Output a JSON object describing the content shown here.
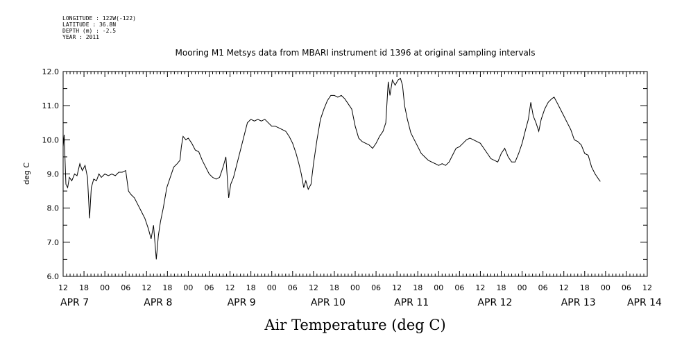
{
  "header": {
    "longitude": "LONGITUDE : 122W(-122)",
    "latitude": "LATITUDE : 36.8N",
    "depth": "DEPTH (m) : -2.5",
    "year": "YEAR : 2011"
  },
  "chart_data": {
    "type": "line",
    "title": "Mooring M1 Metsys data from MBARI instrument id 1396 at original sampling intervals",
    "xlabel": "Air Temperature (deg C)",
    "ylabel": "deg C",
    "ylim": [
      6.0,
      12.0
    ],
    "yticks": [
      "6.0",
      "7.0",
      "8.0",
      "9.0",
      "10.0",
      "11.0",
      "12.0"
    ],
    "xlim_hours": [
      0,
      168
    ],
    "xtick_labels": [
      "12",
      "18",
      "00",
      "06",
      "12",
      "18",
      "00",
      "06",
      "12",
      "18",
      "00",
      "06",
      "12",
      "18",
      "00",
      "06",
      "12",
      "18",
      "00",
      "06",
      "12",
      "18",
      "00",
      "06",
      "12",
      "18",
      "00",
      "06",
      "12"
    ],
    "date_labels": [
      {
        "label": "APR   7",
        "hour": 0
      },
      {
        "label": "APR   8",
        "hour": 24
      },
      {
        "label": "APR   9",
        "hour": 48
      },
      {
        "label": "APR 10",
        "hour": 72
      },
      {
        "label": "APR 11",
        "hour": 96
      },
      {
        "label": "APR 12",
        "hour": 120
      },
      {
        "label": "APR 13",
        "hour": 144
      },
      {
        "label": "APR 14",
        "hour": 163
      }
    ],
    "grid": false,
    "series": [
      {
        "values": [
          [
            0.0,
            9.8
          ],
          [
            0.3,
            10.15
          ],
          [
            0.8,
            8.7
          ],
          [
            1.3,
            8.6
          ],
          [
            1.8,
            8.9
          ],
          [
            2.5,
            8.8
          ],
          [
            3.3,
            9.0
          ],
          [
            4.0,
            8.95
          ],
          [
            4.8,
            9.3
          ],
          [
            5.5,
            9.1
          ],
          [
            6.3,
            9.25
          ],
          [
            7.0,
            8.9
          ],
          [
            7.6,
            7.7
          ],
          [
            8.1,
            8.6
          ],
          [
            8.8,
            8.85
          ],
          [
            9.6,
            8.8
          ],
          [
            10.3,
            9.0
          ],
          [
            11.0,
            8.9
          ],
          [
            12.0,
            9.0
          ],
          [
            13.0,
            8.95
          ],
          [
            14.0,
            9.0
          ],
          [
            15.0,
            8.95
          ],
          [
            16.0,
            9.05
          ],
          [
            17.0,
            9.05
          ],
          [
            18.0,
            9.1
          ],
          [
            18.8,
            8.5
          ],
          [
            19.5,
            8.4
          ],
          [
            20.5,
            8.3
          ],
          [
            21.5,
            8.1
          ],
          [
            22.5,
            7.9
          ],
          [
            23.5,
            7.7
          ],
          [
            24.5,
            7.4
          ],
          [
            25.3,
            7.1
          ],
          [
            26.0,
            7.5
          ],
          [
            26.8,
            6.5
          ],
          [
            27.4,
            7.2
          ],
          [
            28.0,
            7.6
          ],
          [
            28.8,
            8.0
          ],
          [
            29.8,
            8.6
          ],
          [
            30.8,
            8.9
          ],
          [
            31.8,
            9.2
          ],
          [
            32.8,
            9.3
          ],
          [
            33.6,
            9.4
          ],
          [
            34.0,
            9.8
          ],
          [
            34.5,
            10.1
          ],
          [
            35.3,
            10.0
          ],
          [
            36.0,
            10.05
          ],
          [
            37.0,
            9.9
          ],
          [
            38.0,
            9.7
          ],
          [
            39.0,
            9.65
          ],
          [
            40.0,
            9.4
          ],
          [
            41.0,
            9.2
          ],
          [
            42.0,
            9.0
          ],
          [
            43.0,
            8.9
          ],
          [
            44.0,
            8.85
          ],
          [
            45.0,
            8.9
          ],
          [
            46.0,
            9.2
          ],
          [
            46.8,
            9.5
          ],
          [
            47.6,
            8.3
          ],
          [
            48.2,
            8.7
          ],
          [
            49.0,
            8.9
          ],
          [
            50.0,
            9.3
          ],
          [
            51.0,
            9.7
          ],
          [
            52.0,
            10.1
          ],
          [
            53.0,
            10.5
          ],
          [
            54.0,
            10.6
          ],
          [
            55.0,
            10.55
          ],
          [
            56.0,
            10.6
          ],
          [
            57.0,
            10.55
          ],
          [
            58.0,
            10.6
          ],
          [
            59.0,
            10.5
          ],
          [
            60.0,
            10.4
          ],
          [
            61.0,
            10.4
          ],
          [
            62.0,
            10.35
          ],
          [
            63.0,
            10.3
          ],
          [
            64.0,
            10.25
          ],
          [
            65.0,
            10.1
          ],
          [
            66.0,
            9.9
          ],
          [
            67.0,
            9.6
          ],
          [
            67.8,
            9.3
          ],
          [
            68.5,
            9.0
          ],
          [
            69.2,
            8.6
          ],
          [
            69.8,
            8.8
          ],
          [
            70.5,
            8.55
          ],
          [
            71.3,
            8.7
          ],
          [
            72.0,
            9.3
          ],
          [
            73.0,
            10.0
          ],
          [
            74.0,
            10.6
          ],
          [
            75.0,
            10.9
          ],
          [
            76.0,
            11.15
          ],
          [
            77.0,
            11.3
          ],
          [
            78.0,
            11.3
          ],
          [
            79.0,
            11.25
          ],
          [
            80.0,
            11.3
          ],
          [
            81.0,
            11.2
          ],
          [
            82.0,
            11.05
          ],
          [
            83.0,
            10.9
          ],
          [
            84.0,
            10.4
          ],
          [
            85.0,
            10.05
          ],
          [
            86.0,
            9.95
          ],
          [
            87.0,
            9.9
          ],
          [
            88.0,
            9.85
          ],
          [
            89.0,
            9.75
          ],
          [
            90.0,
            9.9
          ],
          [
            91.0,
            10.1
          ],
          [
            92.0,
            10.25
          ],
          [
            92.8,
            10.5
          ],
          [
            93.5,
            11.7
          ],
          [
            94.0,
            11.3
          ],
          [
            94.7,
            11.75
          ],
          [
            95.5,
            11.6
          ],
          [
            96.3,
            11.75
          ],
          [
            97.0,
            11.8
          ],
          [
            97.6,
            11.6
          ],
          [
            98.2,
            11.0
          ],
          [
            99.0,
            10.6
          ],
          [
            100.0,
            10.2
          ],
          [
            101.0,
            10.0
          ],
          [
            102.0,
            9.8
          ],
          [
            103.0,
            9.6
          ],
          [
            104.0,
            9.5
          ],
          [
            105.0,
            9.4
          ],
          [
            106.0,
            9.35
          ],
          [
            107.0,
            9.3
          ],
          [
            108.0,
            9.25
          ],
          [
            109.0,
            9.3
          ],
          [
            110.0,
            9.25
          ],
          [
            111.0,
            9.35
          ],
          [
            112.0,
            9.55
          ],
          [
            113.0,
            9.75
          ],
          [
            114.0,
            9.8
          ],
          [
            115.0,
            9.9
          ],
          [
            116.0,
            10.0
          ],
          [
            117.0,
            10.05
          ],
          [
            118.0,
            10.0
          ],
          [
            119.0,
            9.95
          ],
          [
            120.0,
            9.9
          ],
          [
            121.0,
            9.75
          ],
          [
            122.0,
            9.6
          ],
          [
            123.0,
            9.45
          ],
          [
            124.0,
            9.4
          ],
          [
            125.0,
            9.35
          ],
          [
            126.0,
            9.6
          ],
          [
            127.0,
            9.75
          ],
          [
            128.0,
            9.5
          ],
          [
            129.0,
            9.35
          ],
          [
            130.0,
            9.35
          ],
          [
            131.0,
            9.6
          ],
          [
            132.0,
            9.9
          ],
          [
            133.0,
            10.3
          ],
          [
            133.8,
            10.6
          ],
          [
            134.5,
            11.1
          ],
          [
            135.2,
            10.7
          ],
          [
            136.0,
            10.5
          ],
          [
            136.8,
            10.25
          ],
          [
            137.5,
            10.6
          ],
          [
            138.5,
            10.9
          ],
          [
            139.5,
            11.1
          ],
          [
            140.5,
            11.2
          ],
          [
            141.2,
            11.25
          ],
          [
            142.0,
            11.1
          ],
          [
            143.0,
            10.9
          ],
          [
            144.0,
            10.7
          ],
          [
            145.0,
            10.5
          ],
          [
            146.0,
            10.3
          ],
          [
            147.0,
            10.0
          ],
          [
            148.0,
            9.95
          ],
          [
            149.0,
            9.85
          ],
          [
            150.0,
            9.6
          ],
          [
            151.0,
            9.55
          ],
          [
            152.0,
            9.2
          ],
          [
            153.0,
            9.0
          ],
          [
            154.0,
            8.85
          ],
          [
            154.5,
            8.78
          ]
        ]
      }
    ]
  }
}
